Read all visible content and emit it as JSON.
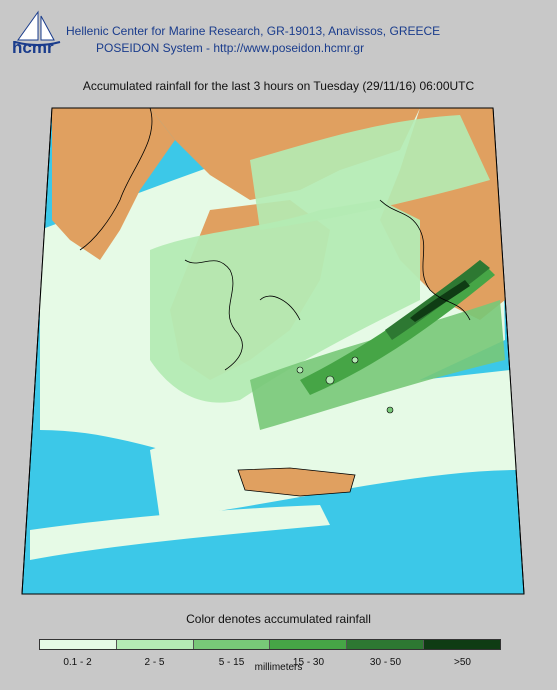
{
  "header": {
    "logo_text": "hcmr",
    "org_line": "Hellenic Center for Marine Research, GR-19013, Anavissos, GREECE",
    "system_line": "POSEIDON System - http://www.poseidon.hcmr.gr"
  },
  "map": {
    "title": "Accumulated rainfall for the last 3 hours on Tuesday (29/11/16) 06:00UTC",
    "colors": {
      "sea": "#3cc8e8",
      "land_dry": "#e0a060",
      "background": "#c8c8c8",
      "coast": "#000000"
    }
  },
  "legend": {
    "caption": "Color denotes accumulated rainfall",
    "units": "millimeters",
    "classes": [
      {
        "label": "0.1 - 2",
        "color": "#e6fae6"
      },
      {
        "label": "2 - 5",
        "color": "#b4ebb4"
      },
      {
        "label": "5 - 15",
        "color": "#78c878"
      },
      {
        "label": "15 - 30",
        "color": "#46a546"
      },
      {
        "label": "30 - 50",
        "color": "#2d7832"
      },
      {
        "label": ">50",
        "color": "#0f3c14"
      }
    ]
  }
}
